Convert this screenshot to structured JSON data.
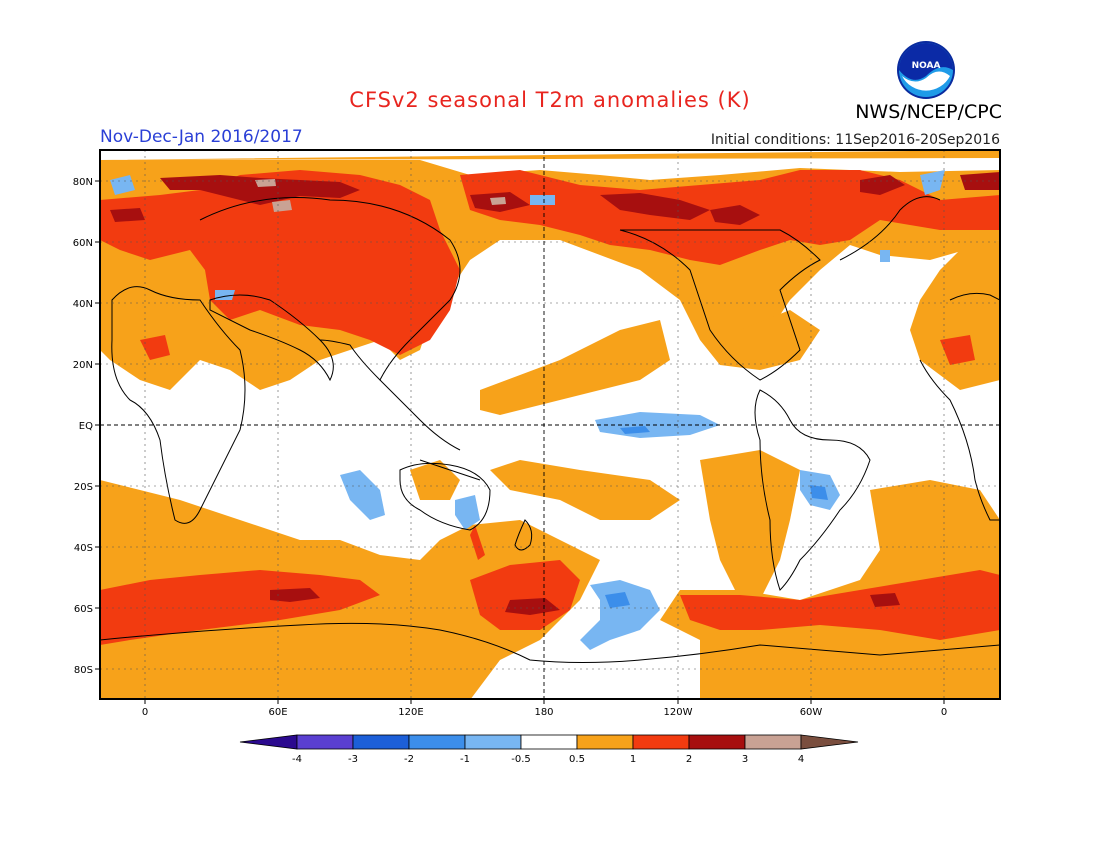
{
  "header": {
    "title": "CFSv2 seasonal T2m anomalies (K)",
    "agency": "NWS/NCEP/CPC",
    "period": "Nov-Dec-Jan 2016/2017",
    "initial_conditions": "Initial conditions: 11Sep2016-20Sep2016",
    "logo_text": "NOAA",
    "logo_icon": "noaa-logo-icon"
  },
  "map": {
    "lat_labels": [
      "80N",
      "60N",
      "40N",
      "20N",
      "EQ",
      "20S",
      "40S",
      "60S",
      "80S"
    ],
    "lon_labels": [
      "0",
      "60E",
      "120E",
      "180",
      "120W",
      "60W",
      "0"
    ]
  },
  "colorbar": {
    "labels": [
      "-4",
      "-3",
      "-2",
      "-1",
      "-0.5",
      "0.5",
      "1",
      "2",
      "3",
      "4"
    ],
    "colors": [
      "#2b0a8f",
      "#5a3fd1",
      "#1c5fd8",
      "#3c8eea",
      "#78b6f2",
      "#ffffff",
      "#f7a21a",
      "#f23b10",
      "#a70f0f",
      "#c9a294",
      "#7a4e3e"
    ]
  },
  "colors": {
    "title": "#e8251f",
    "period": "#2a3fd6",
    "anomaly_0_5_to_1": "#f7a21a",
    "anomaly_1_to_2": "#f23b10",
    "anomaly_2_to_3": "#a70f0f",
    "anomaly_3_to_4": "#c9a294",
    "anomaly_neg_0_5_to_neg_1": "#78b6f2",
    "anomaly_neg_1_to_neg_2": "#3c8eea"
  }
}
